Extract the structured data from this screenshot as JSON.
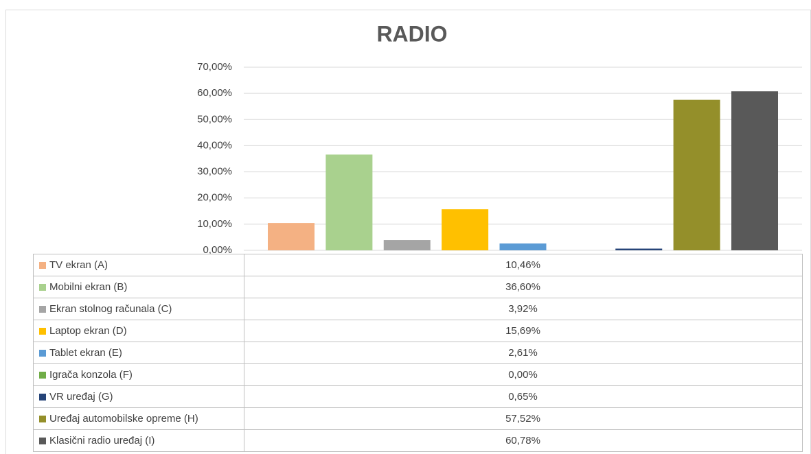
{
  "chart_data": {
    "type": "bar",
    "title": "RADIO",
    "ylim": [
      0,
      70
    ],
    "yticks": [
      {
        "value": 0,
        "label": "0,00%"
      },
      {
        "value": 10,
        "label": "10,00%"
      },
      {
        "value": 20,
        "label": "20,00%"
      },
      {
        "value": 30,
        "label": "30,00%"
      },
      {
        "value": 40,
        "label": "40,00%"
      },
      {
        "value": 50,
        "label": "50,00%"
      },
      {
        "value": 60,
        "label": "60,00%"
      },
      {
        "value": 70,
        "label": "70,00%"
      }
    ],
    "grid": true,
    "series": [
      {
        "name": "TV ekran (A)",
        "color": "#f4b183",
        "values": [
          10.46
        ],
        "value_labels": [
          "10,46%"
        ]
      },
      {
        "name": "Mobilni ekran (B)",
        "color": "#a9d18e",
        "values": [
          36.6
        ],
        "value_labels": [
          "36,60%"
        ]
      },
      {
        "name": "Ekran stolnog računala (C)",
        "color": "#a5a5a5",
        "values": [
          3.92
        ],
        "value_labels": [
          "3,92%"
        ]
      },
      {
        "name": "Laptop ekran (D)",
        "color": "#ffc000",
        "values": [
          15.69
        ],
        "value_labels": [
          "15,69%"
        ]
      },
      {
        "name": "Tablet ekran (E)",
        "color": "#5b9bd5",
        "values": [
          2.61
        ],
        "value_labels": [
          "2,61%"
        ]
      },
      {
        "name": "Igrača konzola (F)",
        "color": "#70ad47",
        "values": [
          0.0
        ],
        "value_labels": [
          "0,00%"
        ]
      },
      {
        "name": "VR uređaj (G)",
        "color": "#264478",
        "values": [
          0.65
        ],
        "value_labels": [
          "0,65%"
        ]
      },
      {
        "name": "Uređaj automobilske opreme (H)",
        "color": "#948f2a",
        "values": [
          57.52
        ],
        "value_labels": [
          "57,52%"
        ]
      },
      {
        "name": "Klasični radio uređaj (I)",
        "color": "#595959",
        "values": [
          60.78
        ],
        "value_labels": [
          "60,78%"
        ]
      }
    ]
  }
}
